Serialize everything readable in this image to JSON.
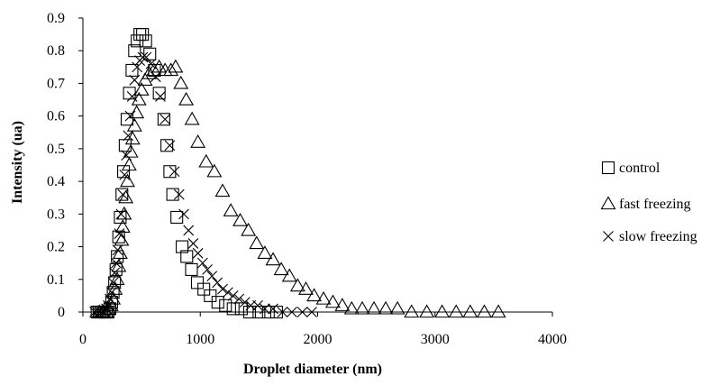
{
  "chart_data": {
    "type": "scatter",
    "title": "",
    "xlabel": "Droplet diameter (nm)",
    "ylabel": "Intensity (ua)",
    "xlim": [
      0,
      4000
    ],
    "ylim": [
      0,
      0.9
    ],
    "x_ticks": [
      "0",
      "1000",
      "2000",
      "3000",
      "4000"
    ],
    "y_ticks": [
      "0",
      "0.1",
      "0.2",
      "0.3",
      "0.4",
      "0.5",
      "0.6",
      "0.7",
      "0.8",
      "0.9"
    ],
    "grid": false,
    "legend_position": "right",
    "series": [
      {
        "name": "control",
        "marker": "square",
        "color": "#000000",
        "points": [
          [
            120,
            0.0
          ],
          [
            140,
            0.0
          ],
          [
            160,
            0.0
          ],
          [
            180,
            0.0
          ],
          [
            200,
            0.0
          ],
          [
            215,
            0.0
          ],
          [
            230,
            0.01
          ],
          [
            245,
            0.03
          ],
          [
            258,
            0.06
          ],
          [
            270,
            0.09
          ],
          [
            282,
            0.13
          ],
          [
            293,
            0.17
          ],
          [
            305,
            0.23
          ],
          [
            318,
            0.29
          ],
          [
            332,
            0.36
          ],
          [
            346,
            0.43
          ],
          [
            360,
            0.51
          ],
          [
            376,
            0.59
          ],
          [
            396,
            0.67
          ],
          [
            418,
            0.74
          ],
          [
            440,
            0.8
          ],
          [
            462,
            0.83
          ],
          [
            485,
            0.85
          ],
          [
            508,
            0.85
          ],
          [
            535,
            0.83
          ],
          [
            570,
            0.79
          ],
          [
            610,
            0.74
          ],
          [
            650,
            0.67
          ],
          [
            690,
            0.59
          ],
          [
            715,
            0.51
          ],
          [
            740,
            0.43
          ],
          [
            765,
            0.36
          ],
          [
            800,
            0.29
          ],
          [
            845,
            0.2
          ],
          [
            885,
            0.17
          ],
          [
            925,
            0.13
          ],
          [
            975,
            0.09
          ],
          [
            1030,
            0.07
          ],
          [
            1085,
            0.05
          ],
          [
            1150,
            0.03
          ],
          [
            1215,
            0.02
          ],
          [
            1280,
            0.01
          ],
          [
            1350,
            0.01
          ],
          [
            1420,
            0.0
          ],
          [
            1500,
            0.0
          ],
          [
            1580,
            0.0
          ],
          [
            1650,
            0.0
          ]
        ]
      },
      {
        "name": "fast freezing",
        "marker": "triangle",
        "color": "#000000",
        "points": [
          [
            140,
            0.0
          ],
          [
            170,
            0.0
          ],
          [
            200,
            0.0
          ],
          [
            220,
            0.01
          ],
          [
            240,
            0.02
          ],
          [
            258,
            0.04
          ],
          [
            275,
            0.07
          ],
          [
            292,
            0.1
          ],
          [
            306,
            0.14
          ],
          [
            318,
            0.18
          ],
          [
            330,
            0.22
          ],
          [
            340,
            0.26
          ],
          [
            352,
            0.3
          ],
          [
            366,
            0.35
          ],
          [
            380,
            0.4
          ],
          [
            394,
            0.45
          ],
          [
            408,
            0.49
          ],
          [
            424,
            0.53
          ],
          [
            440,
            0.57
          ],
          [
            458,
            0.61
          ],
          [
            478,
            0.65
          ],
          [
            500,
            0.68
          ],
          [
            530,
            0.71
          ],
          [
            565,
            0.73
          ],
          [
            605,
            0.74
          ],
          [
            650,
            0.75
          ],
          [
            700,
            0.74
          ],
          [
            750,
            0.74
          ],
          [
            790,
            0.75
          ],
          [
            835,
            0.7
          ],
          [
            880,
            0.65
          ],
          [
            930,
            0.59
          ],
          [
            980,
            0.52
          ],
          [
            1050,
            0.46
          ],
          [
            1120,
            0.43
          ],
          [
            1190,
            0.37
          ],
          [
            1260,
            0.31
          ],
          [
            1340,
            0.28
          ],
          [
            1410,
            0.25
          ],
          [
            1480,
            0.21
          ],
          [
            1550,
            0.18
          ],
          [
            1620,
            0.16
          ],
          [
            1690,
            0.13
          ],
          [
            1760,
            0.11
          ],
          [
            1830,
            0.08
          ],
          [
            1900,
            0.07
          ],
          [
            1970,
            0.05
          ],
          [
            2050,
            0.04
          ],
          [
            2130,
            0.03
          ],
          [
            2210,
            0.02
          ],
          [
            2290,
            0.01
          ],
          [
            2380,
            0.01
          ],
          [
            2480,
            0.01
          ],
          [
            2580,
            0.01
          ],
          [
            2680,
            0.01
          ],
          [
            2800,
            0.0
          ],
          [
            2930,
            0.0
          ],
          [
            3060,
            0.0
          ],
          [
            3180,
            0.0
          ],
          [
            3300,
            0.0
          ],
          [
            3420,
            0.0
          ],
          [
            3540,
            0.0
          ]
        ]
      },
      {
        "name": "slow freezing",
        "marker": "cross",
        "color": "#000000",
        "points": [
          [
            100,
            0.0
          ],
          [
            120,
            0.0
          ],
          [
            140,
            0.0
          ],
          [
            160,
            0.0
          ],
          [
            180,
            0.0
          ],
          [
            200,
            0.01
          ],
          [
            215,
            0.02
          ],
          [
            230,
            0.04
          ],
          [
            245,
            0.06
          ],
          [
            258,
            0.09
          ],
          [
            270,
            0.12
          ],
          [
            283,
            0.15
          ],
          [
            296,
            0.19
          ],
          [
            310,
            0.24
          ],
          [
            325,
            0.3
          ],
          [
            340,
            0.36
          ],
          [
            355,
            0.42
          ],
          [
            370,
            0.48
          ],
          [
            386,
            0.54
          ],
          [
            403,
            0.6
          ],
          [
            420,
            0.66
          ],
          [
            440,
            0.71
          ],
          [
            462,
            0.75
          ],
          [
            485,
            0.77
          ],
          [
            510,
            0.78
          ],
          [
            540,
            0.78
          ],
          [
            580,
            0.76
          ],
          [
            620,
            0.72
          ],
          [
            660,
            0.66
          ],
          [
            700,
            0.59
          ],
          [
            740,
            0.51
          ],
          [
            780,
            0.43
          ],
          [
            820,
            0.36
          ],
          [
            860,
            0.3
          ],
          [
            900,
            0.25
          ],
          [
            940,
            0.21
          ],
          [
            980,
            0.18
          ],
          [
            1020,
            0.15
          ],
          [
            1060,
            0.13
          ],
          [
            1100,
            0.11
          ],
          [
            1145,
            0.09
          ],
          [
            1190,
            0.07
          ],
          [
            1235,
            0.06
          ],
          [
            1280,
            0.05
          ],
          [
            1330,
            0.04
          ],
          [
            1380,
            0.03
          ],
          [
            1430,
            0.02
          ],
          [
            1490,
            0.02
          ],
          [
            1550,
            0.01
          ],
          [
            1620,
            0.01
          ],
          [
            1700,
            0.0
          ],
          [
            1780,
            0.0
          ],
          [
            1870,
            0.0
          ],
          [
            1950,
            0.0
          ]
        ]
      }
    ]
  }
}
